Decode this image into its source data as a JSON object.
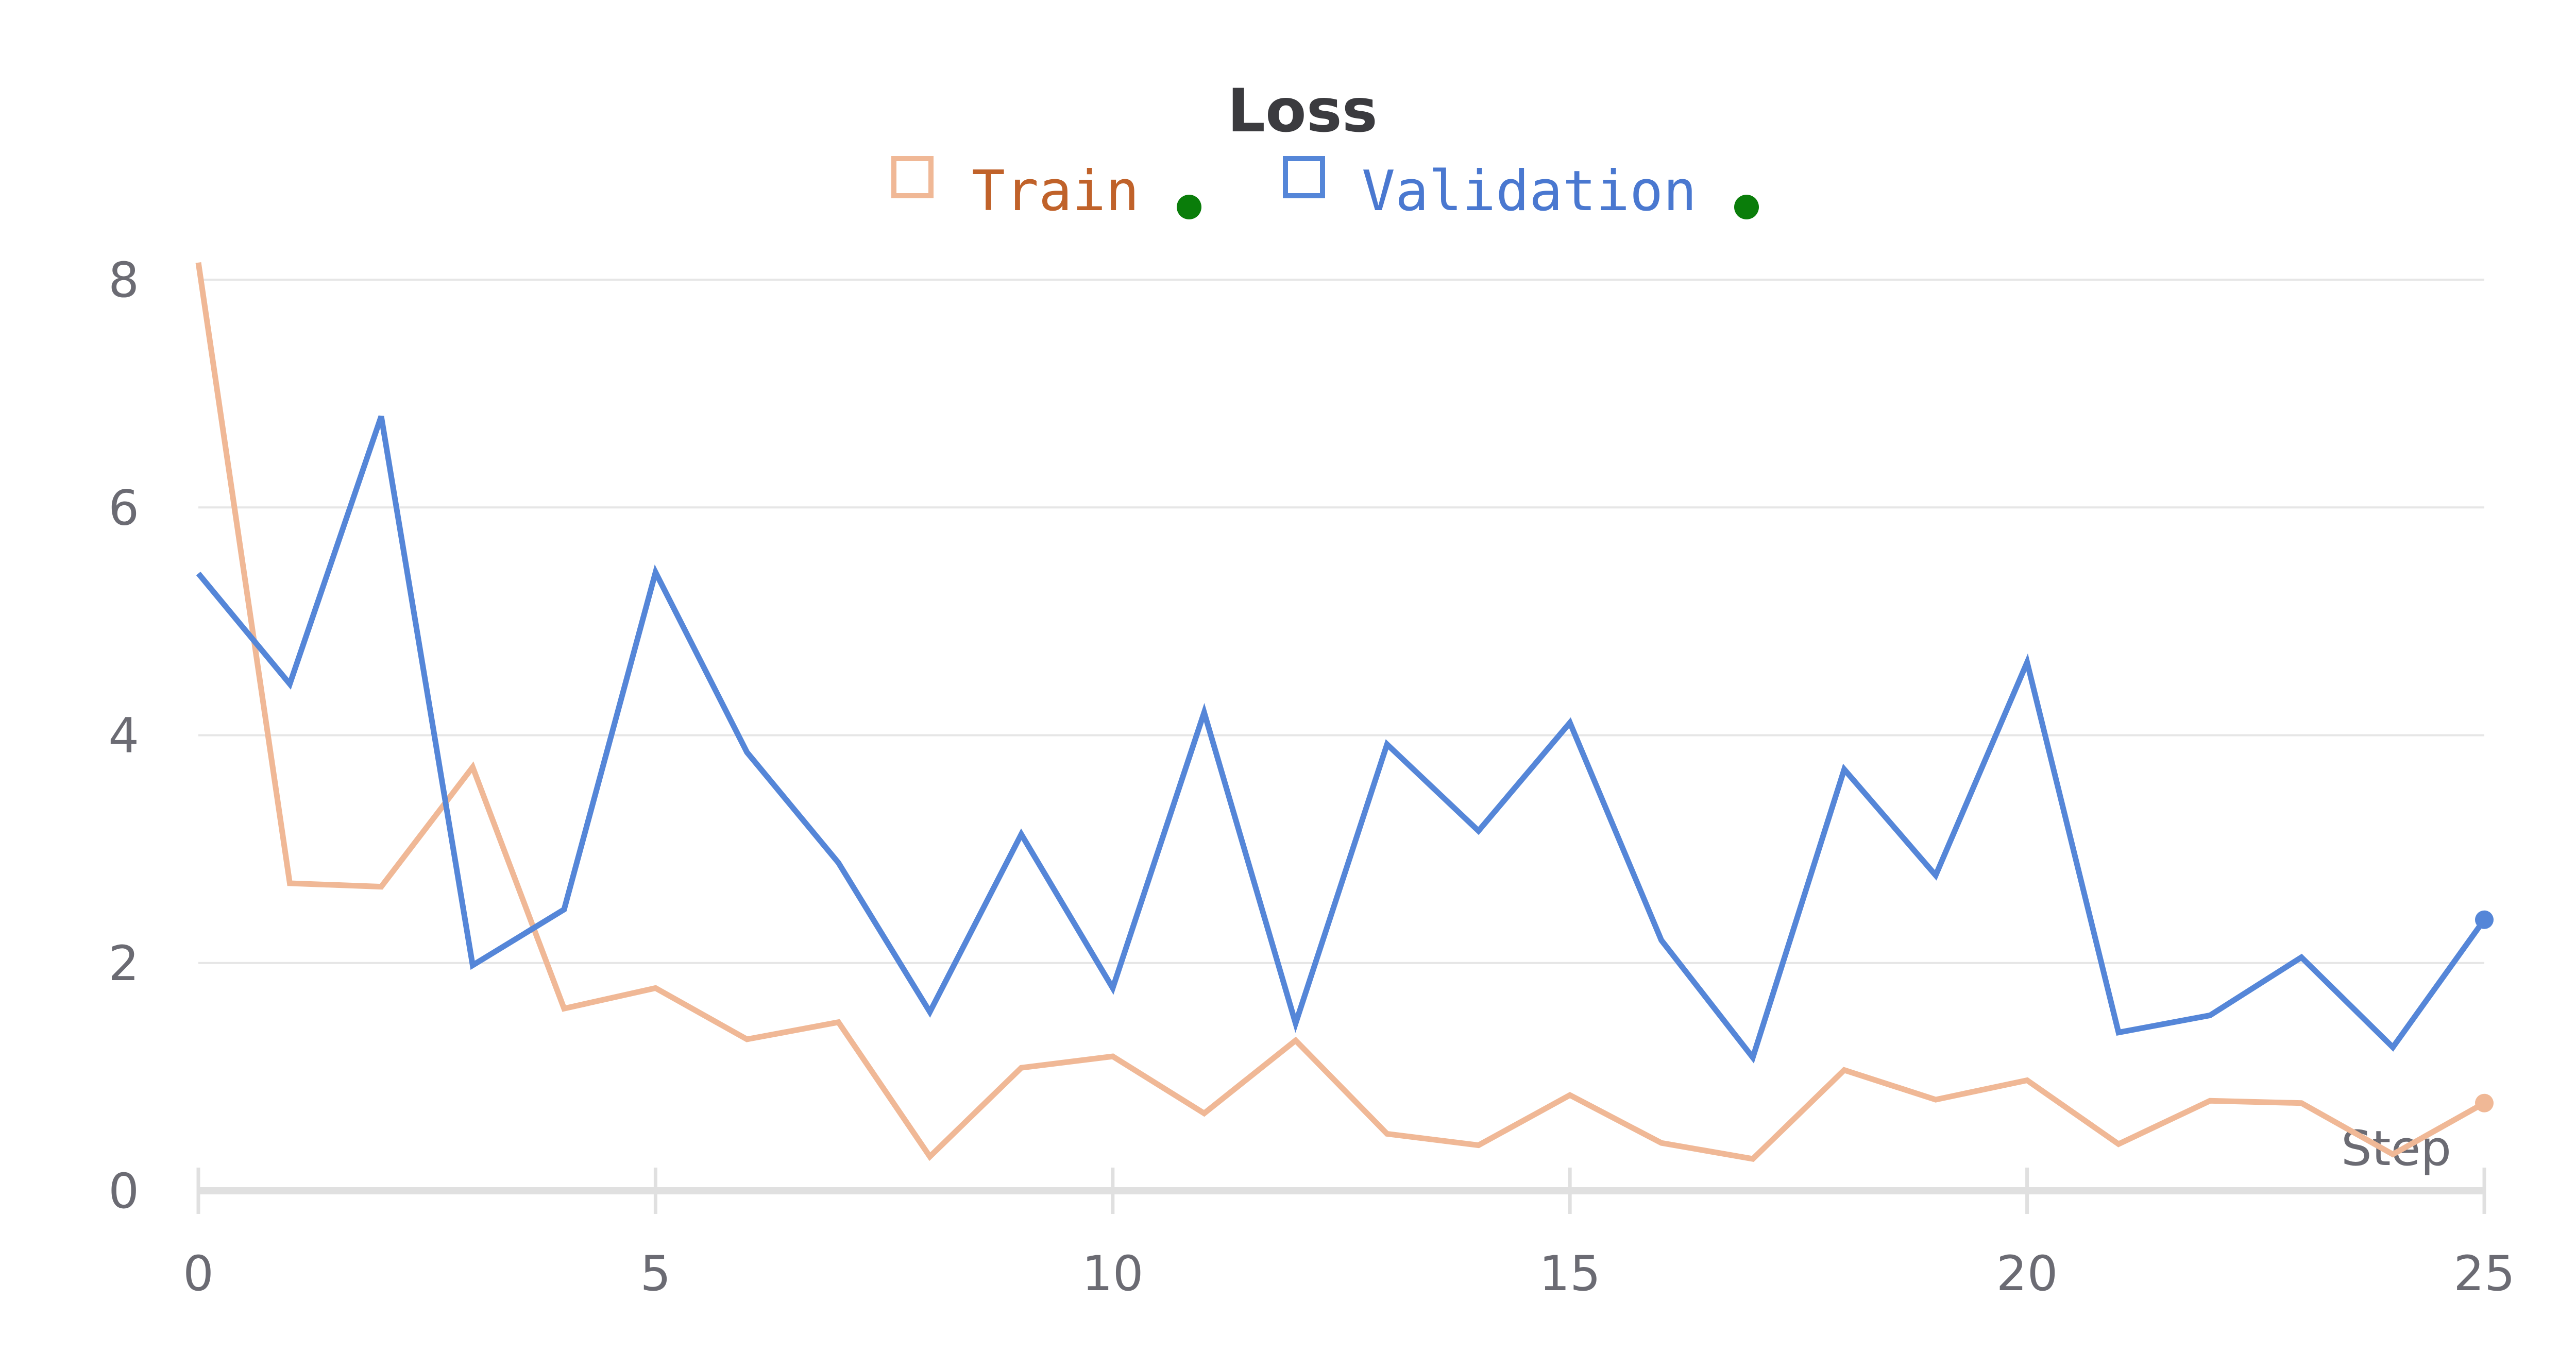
{
  "chart_data": {
    "type": "line",
    "title": "Loss",
    "xlabel": "Step",
    "ylabel": "",
    "xlim": [
      0,
      25
    ],
    "ylim": [
      0,
      8
    ],
    "x_ticks": [
      0,
      5,
      10,
      15,
      20,
      25
    ],
    "y_ticks": [
      0,
      2,
      4,
      6,
      8
    ],
    "grid": true,
    "legend_position": "top-center",
    "x": [
      0,
      1,
      2,
      3,
      4,
      5,
      6,
      7,
      8,
      9,
      10,
      11,
      12,
      13,
      14,
      15,
      16,
      17,
      18,
      19,
      20,
      21,
      22,
      23,
      24,
      25
    ],
    "series": [
      {
        "name": "Train",
        "color": "#f0b896",
        "label_color": "#c0622a",
        "values": [
          8.15,
          2.7,
          2.67,
          3.72,
          1.6,
          1.78,
          1.33,
          1.48,
          0.3,
          1.08,
          1.18,
          0.68,
          1.32,
          0.5,
          0.4,
          0.84,
          0.42,
          0.28,
          1.06,
          0.8,
          0.97,
          0.41,
          0.79,
          0.77,
          0.32,
          0.77
        ],
        "status_dot_color": "#0a7d0a"
      },
      {
        "name": "Validation",
        "color": "#5586d8",
        "label_color": "#4a78d0",
        "values": [
          5.42,
          4.45,
          6.8,
          1.98,
          2.47,
          5.43,
          3.85,
          2.88,
          1.57,
          3.13,
          1.78,
          4.2,
          1.47,
          3.92,
          3.16,
          4.11,
          2.2,
          1.17,
          3.7,
          2.77,
          4.64,
          1.39,
          1.54,
          2.05,
          1.26,
          2.38
        ],
        "status_dot_color": "#0a7d0a"
      }
    ]
  }
}
